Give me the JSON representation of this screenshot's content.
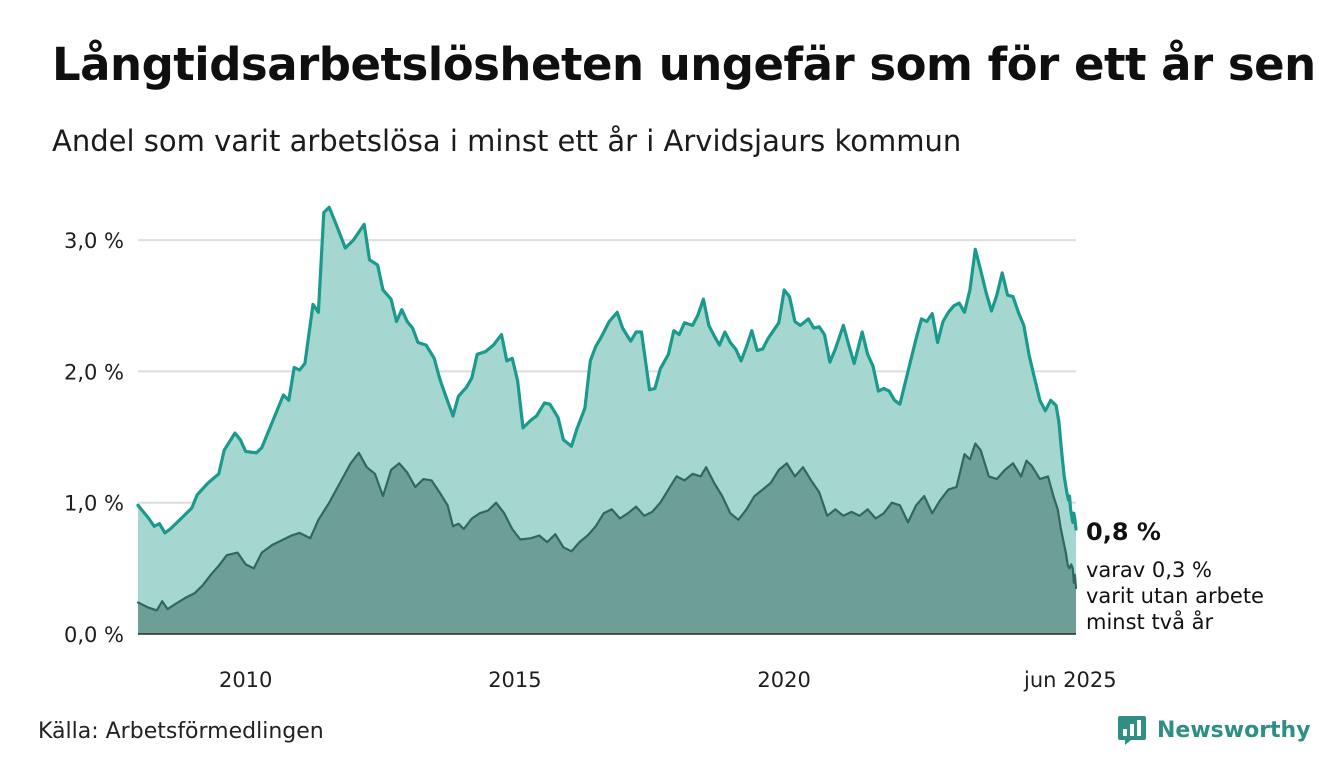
{
  "title": "Långtidsarbetslösheten ungefär som för ett år sen",
  "subtitle": "Andel som varit arbetslösa i minst ett år i Arvidsjaurs kommun",
  "source": "Källa: Arbetsförmedlingen",
  "brand": "Newsworthy",
  "annotation": {
    "main": "0,8 %",
    "sub_lines": [
      "varav 0,3 %",
      "varit utan arbete",
      "minst två år"
    ]
  },
  "colors": {
    "line_one_year": "#1a9a8c",
    "fill_one_year": "#a6d6d0",
    "line_two_year": "#2e6960",
    "fill_two_year": "#6e9f96",
    "grid": "#dedede",
    "brand": "#2f8f84"
  },
  "chart_data": {
    "type": "area",
    "xlabel": "",
    "ylabel": "",
    "x_range": [
      2008.0,
      2025.42
    ],
    "ylim": [
      0,
      3.3
    ],
    "y_ticks": [
      {
        "value": 0,
        "label": "0,0 %"
      },
      {
        "value": 1,
        "label": "1,0 %"
      },
      {
        "value": 2,
        "label": "2,0 %"
      },
      {
        "value": 3,
        "label": "3,0 %"
      }
    ],
    "x_ticks": [
      {
        "value": 2010,
        "label": "2010"
      },
      {
        "value": 2015,
        "label": "2015"
      },
      {
        "value": 2020,
        "label": "2020"
      },
      {
        "value": 2025.42,
        "label": "jun 2025"
      }
    ],
    "grid": true,
    "series": [
      {
        "points": [
          [
            2008.0,
            0.98
          ],
          [
            2008.1,
            0.93
          ],
          [
            2008.2,
            0.88
          ],
          [
            2008.3,
            0.82
          ],
          [
            2008.4,
            0.84
          ],
          [
            2008.5,
            0.77
          ],
          [
            2008.6,
            0.8
          ],
          [
            2008.8,
            0.88
          ],
          [
            2009.0,
            0.96
          ],
          [
            2009.1,
            1.06
          ],
          [
            2009.3,
            1.15
          ],
          [
            2009.5,
            1.22
          ],
          [
            2009.6,
            1.4
          ],
          [
            2009.8,
            1.53
          ],
          [
            2009.9,
            1.48
          ],
          [
            2010.0,
            1.39
          ],
          [
            2010.2,
            1.38
          ],
          [
            2010.3,
            1.42
          ],
          [
            2010.5,
            1.62
          ],
          [
            2010.7,
            1.82
          ],
          [
            2010.8,
            1.78
          ],
          [
            2010.9,
            2.03
          ],
          [
            2011.0,
            2.01
          ],
          [
            2011.1,
            2.06
          ],
          [
            2011.25,
            2.51
          ],
          [
            2011.35,
            2.45
          ],
          [
            2011.45,
            3.21
          ],
          [
            2011.55,
            3.25
          ],
          [
            2011.7,
            3.1
          ],
          [
            2011.85,
            2.94
          ],
          [
            2012.0,
            3.0
          ],
          [
            2012.2,
            3.12
          ],
          [
            2012.3,
            2.85
          ],
          [
            2012.45,
            2.81
          ],
          [
            2012.55,
            2.62
          ],
          [
            2012.7,
            2.55
          ],
          [
            2012.8,
            2.38
          ],
          [
            2012.9,
            2.47
          ],
          [
            2013.0,
            2.38
          ],
          [
            2013.1,
            2.33
          ],
          [
            2013.2,
            2.22
          ],
          [
            2013.35,
            2.2
          ],
          [
            2013.5,
            2.1
          ],
          [
            2013.6,
            1.95
          ],
          [
            2013.7,
            1.83
          ],
          [
            2013.85,
            1.66
          ],
          [
            2013.95,
            1.81
          ],
          [
            2014.1,
            1.88
          ],
          [
            2014.2,
            1.95
          ],
          [
            2014.3,
            2.13
          ],
          [
            2014.45,
            2.15
          ],
          [
            2014.6,
            2.2
          ],
          [
            2014.75,
            2.28
          ],
          [
            2014.85,
            2.08
          ],
          [
            2014.95,
            2.1
          ],
          [
            2015.05,
            1.93
          ],
          [
            2015.15,
            1.57
          ],
          [
            2015.3,
            1.63
          ],
          [
            2015.4,
            1.66
          ],
          [
            2015.55,
            1.76
          ],
          [
            2015.65,
            1.75
          ],
          [
            2015.8,
            1.65
          ],
          [
            2015.9,
            1.48
          ],
          [
            2016.05,
            1.43
          ],
          [
            2016.15,
            1.56
          ],
          [
            2016.3,
            1.72
          ],
          [
            2016.4,
            2.08
          ],
          [
            2016.5,
            2.19
          ],
          [
            2016.6,
            2.26
          ],
          [
            2016.75,
            2.38
          ],
          [
            2016.9,
            2.45
          ],
          [
            2017.0,
            2.33
          ],
          [
            2017.15,
            2.23
          ],
          [
            2017.25,
            2.3
          ],
          [
            2017.35,
            2.3
          ],
          [
            2017.5,
            1.86
          ],
          [
            2017.6,
            1.87
          ],
          [
            2017.7,
            2.02
          ],
          [
            2017.85,
            2.13
          ],
          [
            2017.95,
            2.31
          ],
          [
            2018.05,
            2.28
          ],
          [
            2018.15,
            2.37
          ],
          [
            2018.3,
            2.35
          ],
          [
            2018.4,
            2.43
          ],
          [
            2018.5,
            2.55
          ],
          [
            2018.6,
            2.35
          ],
          [
            2018.7,
            2.27
          ],
          [
            2018.8,
            2.2
          ],
          [
            2018.9,
            2.3
          ],
          [
            2019.0,
            2.22
          ],
          [
            2019.1,
            2.17
          ],
          [
            2019.2,
            2.08
          ],
          [
            2019.3,
            2.19
          ],
          [
            2019.4,
            2.31
          ],
          [
            2019.5,
            2.16
          ],
          [
            2019.6,
            2.17
          ],
          [
            2019.7,
            2.25
          ],
          [
            2019.8,
            2.31
          ],
          [
            2019.9,
            2.37
          ],
          [
            2020.0,
            2.62
          ],
          [
            2020.1,
            2.57
          ],
          [
            2020.2,
            2.38
          ],
          [
            2020.3,
            2.35
          ],
          [
            2020.45,
            2.4
          ],
          [
            2020.55,
            2.33
          ],
          [
            2020.65,
            2.34
          ],
          [
            2020.75,
            2.28
          ],
          [
            2020.85,
            2.07
          ],
          [
            2020.95,
            2.17
          ],
          [
            2021.1,
            2.35
          ],
          [
            2021.2,
            2.2
          ],
          [
            2021.3,
            2.06
          ],
          [
            2021.45,
            2.3
          ],
          [
            2021.55,
            2.13
          ],
          [
            2021.65,
            2.04
          ],
          [
            2021.75,
            1.85
          ],
          [
            2021.85,
            1.87
          ],
          [
            2021.95,
            1.85
          ],
          [
            2022.05,
            1.78
          ],
          [
            2022.15,
            1.75
          ],
          [
            2022.3,
            2.0
          ],
          [
            2022.45,
            2.25
          ],
          [
            2022.55,
            2.4
          ],
          [
            2022.65,
            2.38
          ],
          [
            2022.75,
            2.44
          ],
          [
            2022.85,
            2.22
          ],
          [
            2022.95,
            2.38
          ],
          [
            2023.05,
            2.45
          ],
          [
            2023.15,
            2.5
          ],
          [
            2023.25,
            2.52
          ],
          [
            2023.35,
            2.45
          ],
          [
            2023.45,
            2.62
          ],
          [
            2023.55,
            2.93
          ],
          [
            2023.65,
            2.77
          ],
          [
            2023.75,
            2.6
          ],
          [
            2023.85,
            2.46
          ],
          [
            2023.95,
            2.58
          ],
          [
            2024.05,
            2.75
          ],
          [
            2024.15,
            2.58
          ],
          [
            2024.25,
            2.57
          ],
          [
            2024.35,
            2.45
          ],
          [
            2024.45,
            2.35
          ],
          [
            2024.55,
            2.12
          ],
          [
            2024.65,
            1.95
          ],
          [
            2024.75,
            1.78
          ],
          [
            2024.85,
            1.7
          ],
          [
            2024.95,
            1.78
          ],
          [
            2025.05,
            1.74
          ],
          [
            2025.1,
            1.62
          ],
          [
            2025.15,
            1.4
          ],
          [
            2025.2,
            1.2
          ],
          [
            2025.25,
            1.08
          ],
          [
            2025.28,
            1.02
          ],
          [
            2025.3,
            1.05
          ],
          [
            2025.32,
            0.95
          ],
          [
            2025.34,
            0.9
          ],
          [
            2025.36,
            0.85
          ],
          [
            2025.38,
            0.92
          ],
          [
            2025.4,
            0.87
          ],
          [
            2025.42,
            0.8
          ]
        ]
      },
      {
        "points": [
          [
            2008.0,
            0.24
          ],
          [
            2008.2,
            0.2
          ],
          [
            2008.35,
            0.18
          ],
          [
            2008.45,
            0.25
          ],
          [
            2008.55,
            0.19
          ],
          [
            2008.7,
            0.23
          ],
          [
            2008.9,
            0.28
          ],
          [
            2009.05,
            0.31
          ],
          [
            2009.2,
            0.37
          ],
          [
            2009.35,
            0.45
          ],
          [
            2009.5,
            0.52
          ],
          [
            2009.65,
            0.6
          ],
          [
            2009.85,
            0.62
          ],
          [
            2010.0,
            0.53
          ],
          [
            2010.15,
            0.5
          ],
          [
            2010.3,
            0.62
          ],
          [
            2010.5,
            0.68
          ],
          [
            2010.7,
            0.72
          ],
          [
            2010.85,
            0.75
          ],
          [
            2011.0,
            0.77
          ],
          [
            2011.2,
            0.73
          ],
          [
            2011.35,
            0.87
          ],
          [
            2011.55,
            1.0
          ],
          [
            2011.75,
            1.15
          ],
          [
            2011.95,
            1.3
          ],
          [
            2012.1,
            1.38
          ],
          [
            2012.25,
            1.27
          ],
          [
            2012.4,
            1.22
          ],
          [
            2012.55,
            1.05
          ],
          [
            2012.7,
            1.25
          ],
          [
            2012.85,
            1.3
          ],
          [
            2013.0,
            1.23
          ],
          [
            2013.15,
            1.12
          ],
          [
            2013.3,
            1.18
          ],
          [
            2013.45,
            1.17
          ],
          [
            2013.6,
            1.08
          ],
          [
            2013.75,
            0.98
          ],
          [
            2013.85,
            0.82
          ],
          [
            2013.95,
            0.84
          ],
          [
            2014.05,
            0.8
          ],
          [
            2014.2,
            0.88
          ],
          [
            2014.35,
            0.92
          ],
          [
            2014.5,
            0.94
          ],
          [
            2014.65,
            1.0
          ],
          [
            2014.8,
            0.92
          ],
          [
            2014.95,
            0.8
          ],
          [
            2015.1,
            0.72
          ],
          [
            2015.3,
            0.73
          ],
          [
            2015.45,
            0.75
          ],
          [
            2015.6,
            0.7
          ],
          [
            2015.75,
            0.76
          ],
          [
            2015.9,
            0.66
          ],
          [
            2016.05,
            0.63
          ],
          [
            2016.2,
            0.7
          ],
          [
            2016.35,
            0.75
          ],
          [
            2016.5,
            0.82
          ],
          [
            2016.65,
            0.92
          ],
          [
            2016.8,
            0.95
          ],
          [
            2016.95,
            0.88
          ],
          [
            2017.1,
            0.92
          ],
          [
            2017.25,
            0.97
          ],
          [
            2017.4,
            0.9
          ],
          [
            2017.55,
            0.93
          ],
          [
            2017.7,
            1.0
          ],
          [
            2017.85,
            1.1
          ],
          [
            2018.0,
            1.2
          ],
          [
            2018.15,
            1.17
          ],
          [
            2018.3,
            1.22
          ],
          [
            2018.45,
            1.2
          ],
          [
            2018.55,
            1.27
          ],
          [
            2018.7,
            1.15
          ],
          [
            2018.85,
            1.05
          ],
          [
            2019.0,
            0.92
          ],
          [
            2019.15,
            0.87
          ],
          [
            2019.3,
            0.95
          ],
          [
            2019.45,
            1.05
          ],
          [
            2019.6,
            1.1
          ],
          [
            2019.75,
            1.15
          ],
          [
            2019.9,
            1.25
          ],
          [
            2020.05,
            1.3
          ],
          [
            2020.2,
            1.2
          ],
          [
            2020.35,
            1.27
          ],
          [
            2020.5,
            1.17
          ],
          [
            2020.65,
            1.08
          ],
          [
            2020.8,
            0.9
          ],
          [
            2020.95,
            0.95
          ],
          [
            2021.1,
            0.9
          ],
          [
            2021.25,
            0.93
          ],
          [
            2021.4,
            0.9
          ],
          [
            2021.55,
            0.95
          ],
          [
            2021.7,
            0.88
          ],
          [
            2021.85,
            0.92
          ],
          [
            2022.0,
            1.0
          ],
          [
            2022.15,
            0.98
          ],
          [
            2022.3,
            0.85
          ],
          [
            2022.45,
            0.98
          ],
          [
            2022.6,
            1.05
          ],
          [
            2022.75,
            0.92
          ],
          [
            2022.9,
            1.02
          ],
          [
            2023.05,
            1.1
          ],
          [
            2023.2,
            1.12
          ],
          [
            2023.35,
            1.37
          ],
          [
            2023.45,
            1.33
          ],
          [
            2023.55,
            1.45
          ],
          [
            2023.65,
            1.4
          ],
          [
            2023.8,
            1.2
          ],
          [
            2023.95,
            1.18
          ],
          [
            2024.1,
            1.25
          ],
          [
            2024.25,
            1.3
          ],
          [
            2024.4,
            1.2
          ],
          [
            2024.5,
            1.32
          ],
          [
            2024.6,
            1.28
          ],
          [
            2024.75,
            1.18
          ],
          [
            2024.9,
            1.2
          ],
          [
            2025.0,
            1.05
          ],
          [
            2025.08,
            0.95
          ],
          [
            2025.14,
            0.8
          ],
          [
            2025.19,
            0.7
          ],
          [
            2025.23,
            0.62
          ],
          [
            2025.27,
            0.52
          ],
          [
            2025.3,
            0.5
          ],
          [
            2025.33,
            0.53
          ],
          [
            2025.36,
            0.5
          ],
          [
            2025.38,
            0.39
          ],
          [
            2025.4,
            0.45
          ],
          [
            2025.42,
            0.35
          ]
        ]
      }
    ]
  }
}
